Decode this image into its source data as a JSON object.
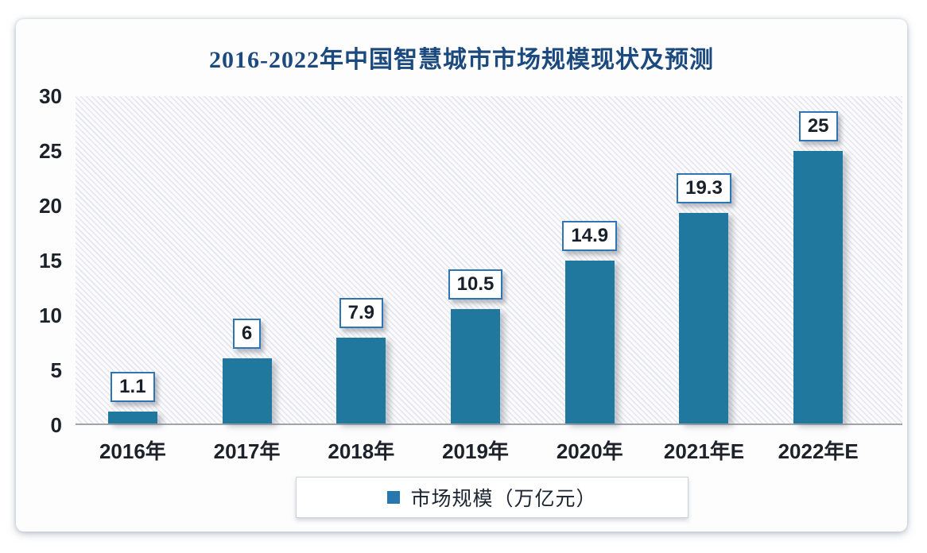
{
  "chart_data": {
    "type": "bar",
    "title": "2016-2022年中国智慧城市市场规模现状及预测",
    "categories": [
      "2016年",
      "2017年",
      "2018年",
      "2019年",
      "2020年",
      "2021年E",
      "2022年E"
    ],
    "values": [
      1.1,
      6,
      7.9,
      10.5,
      14.9,
      19.3,
      25
    ],
    "value_labels": [
      "1.1",
      "6",
      "7.9",
      "10.5",
      "14.9",
      "19.3",
      "25"
    ],
    "ylim": [
      0,
      30
    ],
    "yticks": [
      30,
      25,
      20,
      15,
      10,
      5,
      0
    ],
    "ytick_labels": [
      "30",
      "25",
      "20",
      "15",
      "10",
      "5",
      "0"
    ],
    "xlabel": "",
    "ylabel": "",
    "grid": false,
    "legend": "市场规模（万亿元）",
    "legend_position": "bottom",
    "bar_color": "#20789e",
    "legend_marker_color": "#2878ae",
    "title_color": "#1c4a7e",
    "value_box_border_color": "#2e75b6",
    "axis_text_color": "#1d2129",
    "baseline_color": "#a0a4ab"
  }
}
